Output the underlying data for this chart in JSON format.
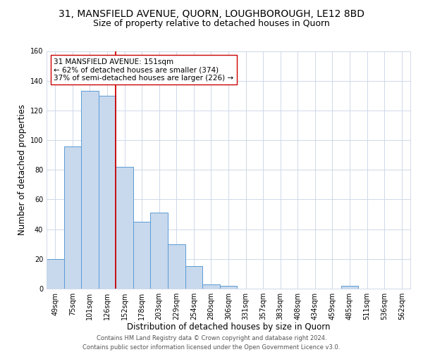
{
  "title": "31, MANSFIELD AVENUE, QUORN, LOUGHBOROUGH, LE12 8BD",
  "subtitle": "Size of property relative to detached houses in Quorn",
  "xlabel": "Distribution of detached houses by size in Quorn",
  "ylabel": "Number of detached properties",
  "bar_labels": [
    "49sqm",
    "75sqm",
    "101sqm",
    "126sqm",
    "152sqm",
    "178sqm",
    "203sqm",
    "229sqm",
    "254sqm",
    "280sqm",
    "306sqm",
    "331sqm",
    "357sqm",
    "383sqm",
    "408sqm",
    "434sqm",
    "459sqm",
    "485sqm",
    "511sqm",
    "536sqm",
    "562sqm"
  ],
  "bar_values": [
    20,
    96,
    133,
    130,
    82,
    45,
    51,
    30,
    15,
    3,
    2,
    0,
    0,
    0,
    0,
    0,
    0,
    2,
    0,
    0,
    0
  ],
  "bar_color": "#c8d9ed",
  "bar_edge_color": "#5b9bd5",
  "vline_x": 3.5,
  "vline_color": "#cc0000",
  "ylim": [
    0,
    160
  ],
  "yticks": [
    0,
    20,
    40,
    60,
    80,
    100,
    120,
    140,
    160
  ],
  "annotation_title": "31 MANSFIELD AVENUE: 151sqm",
  "annotation_line1": "← 62% of detached houses are smaller (374)",
  "annotation_line2": "37% of semi-detached houses are larger (226) →",
  "annotation_box_color": "#ffffff",
  "annotation_box_edge": "#cc0000",
  "grid_color": "#d0d8e8",
  "footer1": "Contains HM Land Registry data © Crown copyright and database right 2024.",
  "footer2": "Contains public sector information licensed under the Open Government Licence v3.0.",
  "title_fontsize": 10,
  "subtitle_fontsize": 9,
  "xlabel_fontsize": 8.5,
  "ylabel_fontsize": 8.5,
  "tick_fontsize": 7,
  "annotation_fontsize": 7.5,
  "footer_fontsize": 6
}
